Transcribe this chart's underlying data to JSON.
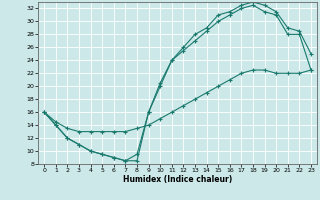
{
  "xlabel": "Humidex (Indice chaleur)",
  "bg_color": "#cce8e8",
  "grid_color": "#ffffff",
  "line_color": "#1a7a6e",
  "xlim": [
    -0.5,
    23.5
  ],
  "ylim": [
    8,
    33
  ],
  "xticks": [
    0,
    1,
    2,
    3,
    4,
    5,
    6,
    7,
    8,
    9,
    10,
    11,
    12,
    13,
    14,
    15,
    16,
    17,
    18,
    19,
    20,
    21,
    22,
    23
  ],
  "yticks": [
    8,
    10,
    12,
    14,
    16,
    18,
    20,
    22,
    24,
    26,
    28,
    30,
    32
  ],
  "line1_x": [
    0,
    1,
    2,
    3,
    4,
    5,
    6,
    7,
    8,
    9,
    10,
    11,
    12,
    13,
    14,
    15,
    16,
    17,
    18,
    19,
    20,
    21,
    22,
    23
  ],
  "line1_y": [
    16,
    14,
    12,
    11,
    10,
    9.5,
    9,
    8.5,
    8.5,
    16,
    20,
    24,
    26,
    28,
    29,
    31,
    31.5,
    32.5,
    33,
    32.5,
    31.5,
    29,
    28.5,
    25
  ],
  "line2_x": [
    0,
    1,
    2,
    3,
    4,
    5,
    6,
    7,
    8,
    9,
    10,
    11,
    12,
    13,
    14,
    15,
    16,
    17,
    18,
    19,
    20,
    21,
    22,
    23
  ],
  "line2_y": [
    16,
    14,
    12,
    11,
    10,
    9.5,
    9,
    8.5,
    9.5,
    16,
    20.5,
    24,
    25.5,
    27,
    28.5,
    30,
    31,
    32,
    32.5,
    31.5,
    31,
    28,
    28,
    22.5
  ],
  "line3_x": [
    0,
    1,
    2,
    3,
    4,
    5,
    6,
    7,
    8,
    9,
    10,
    11,
    12,
    13,
    14,
    15,
    16,
    17,
    18,
    19,
    20,
    21,
    22,
    23
  ],
  "line3_y": [
    16,
    14.5,
    13.5,
    13,
    13,
    13,
    13,
    13,
    13.5,
    14,
    15,
    16,
    17,
    18,
    19,
    20,
    21,
    22,
    22.5,
    22.5,
    22,
    22,
    22,
    22.5
  ]
}
